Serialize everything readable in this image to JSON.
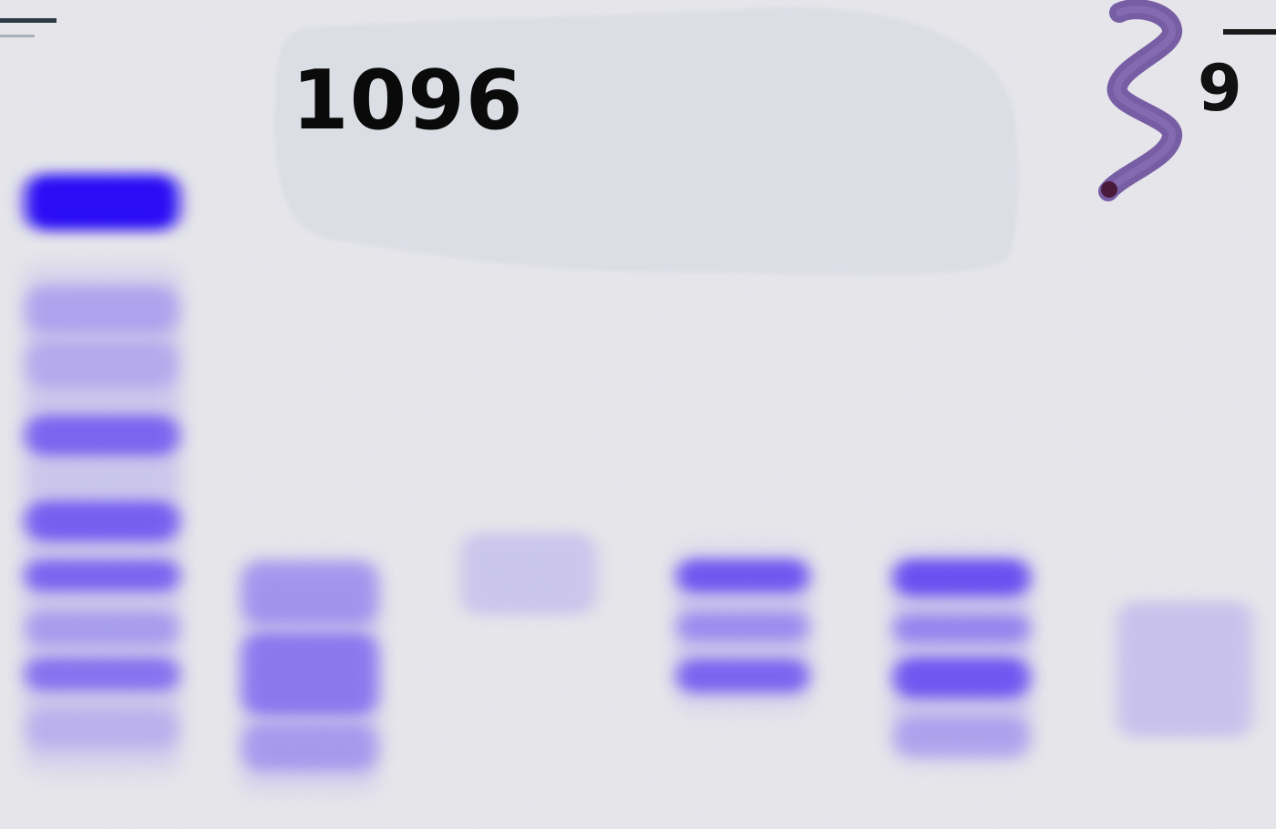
{
  "sample_label": "1096",
  "corner_mark": "9",
  "colors": {
    "background": "#e9e9ee",
    "band": "#5a3cf2",
    "band_strong": "#2b10f5",
    "label_patch": "#dcdee6",
    "marker_ink": "#6a4f9c",
    "text": "#0a0a0a"
  },
  "lanes": [
    {
      "name": "lane-1",
      "bands": [
        {
          "intensity": 1.0
        },
        {
          "intensity": 0.25
        },
        {
          "intensity": 0.2
        },
        {
          "intensity": 0.7
        },
        {
          "intensity": 0.75
        },
        {
          "intensity": 0.7
        },
        {
          "intensity": 0.3
        },
        {
          "intensity": 0.6
        },
        {
          "intensity": 0.15
        }
      ]
    },
    {
      "name": "lane-2",
      "bands": [
        {
          "intensity": 0.35
        },
        {
          "intensity": 0.55
        },
        {
          "intensity": 0.3
        }
      ]
    },
    {
      "name": "lane-3",
      "bands": [
        {
          "intensity": 0.18
        }
      ]
    },
    {
      "name": "lane-4",
      "bands": [
        {
          "intensity": 0.8
        },
        {
          "intensity": 0.4
        },
        {
          "intensity": 0.7
        }
      ]
    },
    {
      "name": "lane-5",
      "bands": [
        {
          "intensity": 0.85
        },
        {
          "intensity": 0.45
        },
        {
          "intensity": 0.8
        },
        {
          "intensity": 0.25
        }
      ]
    },
    {
      "name": "lane-6",
      "bands": [
        {
          "intensity": 0.2
        }
      ]
    }
  ]
}
